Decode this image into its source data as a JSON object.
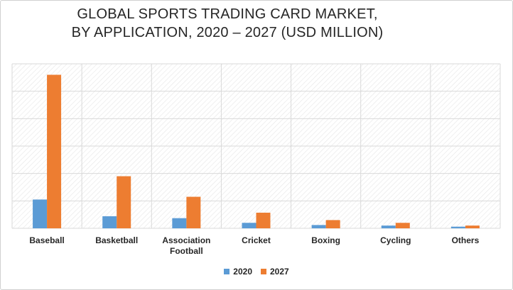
{
  "colors": {
    "series_2020": "#5b9bd5",
    "series_2027": "#ed7d31",
    "grid": "#d9d9d9",
    "hatch": "#e6e6e6"
  },
  "chart_data": {
    "type": "bar",
    "title_lines": [
      "GLOBAL SPORTS TRADING CARD MARKET,",
      "BY APPLICATION, 2020 – 2027 (USD MILLION)"
    ],
    "categories": [
      [
        "Baseball"
      ],
      [
        "Basketball"
      ],
      [
        "Association",
        "Football"
      ],
      [
        "Cricket"
      ],
      [
        "Boxing"
      ],
      [
        "Cycling"
      ],
      [
        "Others"
      ]
    ],
    "series": [
      {
        "name": "2020",
        "color": "#5b9bd5",
        "values": [
          1.05,
          0.44,
          0.37,
          0.2,
          0.12,
          0.1,
          0.06
        ]
      },
      {
        "name": "2027",
        "color": "#ed7d31",
        "values": [
          5.6,
          1.9,
          1.15,
          0.57,
          0.3,
          0.2,
          0.1
        ]
      }
    ],
    "ylim": [
      0,
      6
    ],
    "y_gridlines": 6,
    "y_tick_labels_shown": false,
    "grid": true,
    "legend_position": "bottom"
  }
}
